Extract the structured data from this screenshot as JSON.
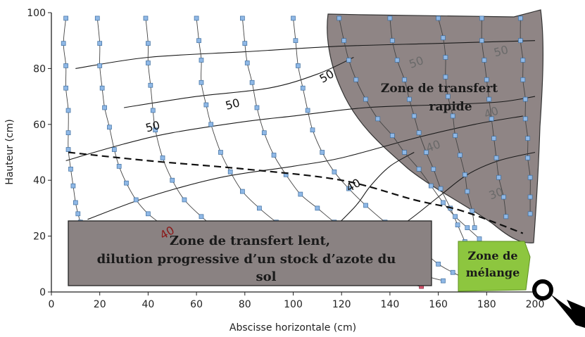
{
  "chart_data": {
    "type": "scatter",
    "xlabel": "Abscisse horizontale (cm)",
    "ylabel": "Hauteur (cm)",
    "xlim": [
      0,
      200
    ],
    "ylim": [
      0,
      100
    ],
    "xticks": [
      "0",
      "20",
      "40",
      "60",
      "80",
      "100",
      "120",
      "140",
      "160",
      "180",
      "200"
    ],
    "yticks": [
      "0",
      "20",
      "40",
      "60",
      "80",
      "100"
    ],
    "flow_paths": [
      [
        [
          6,
          98
        ],
        [
          5,
          89
        ],
        [
          6,
          81
        ],
        [
          6,
          73
        ],
        [
          7,
          65
        ],
        [
          7,
          57
        ],
        [
          7,
          51
        ],
        [
          8,
          44
        ],
        [
          9,
          38
        ],
        [
          10,
          32
        ],
        [
          11,
          28
        ],
        [
          12,
          25
        ],
        [
          13,
          22
        ],
        [
          15,
          19
        ],
        [
          17,
          17
        ],
        [
          20,
          15
        ],
        [
          24,
          13
        ],
        [
          28,
          11
        ],
        [
          34,
          9
        ],
        [
          41,
          7
        ],
        [
          50,
          6
        ],
        [
          60,
          5
        ],
        [
          70,
          4
        ],
        [
          80,
          3
        ],
        [
          89,
          3
        ]
      ],
      [
        [
          19,
          98
        ],
        [
          20,
          89
        ],
        [
          20,
          81
        ],
        [
          21,
          73
        ],
        [
          22,
          66
        ],
        [
          24,
          59
        ],
        [
          26,
          51
        ],
        [
          28,
          45
        ],
        [
          31,
          39
        ],
        [
          35,
          33
        ],
        [
          40,
          28
        ],
        [
          46,
          24
        ],
        [
          53,
          20
        ],
        [
          60,
          17
        ],
        [
          67,
          15
        ],
        [
          75,
          13
        ],
        [
          82,
          11
        ],
        [
          89,
          9
        ],
        [
          96,
          8
        ],
        [
          104,
          6
        ],
        [
          110,
          5
        ],
        [
          121,
          4
        ],
        [
          128,
          3
        ]
      ],
      [
        [
          39,
          98
        ],
        [
          40,
          89
        ],
        [
          40,
          82
        ],
        [
          41,
          74
        ],
        [
          42,
          65
        ],
        [
          43,
          58
        ],
        [
          46,
          48
        ],
        [
          50,
          40
        ],
        [
          55,
          33
        ],
        [
          62,
          27
        ],
        [
          69,
          22
        ],
        [
          76,
          18
        ],
        [
          82,
          15
        ],
        [
          89,
          13
        ],
        [
          97,
          11
        ],
        [
          107,
          9
        ],
        [
          116,
          7
        ],
        [
          125,
          5
        ],
        [
          138,
          4
        ],
        [
          153,
          2
        ]
      ],
      [
        [
          60,
          98
        ],
        [
          61,
          90
        ],
        [
          62,
          83
        ],
        [
          62,
          75
        ],
        [
          64,
          67
        ],
        [
          66,
          60
        ],
        [
          70,
          50
        ],
        [
          74,
          43
        ],
        [
          79,
          36
        ],
        [
          86,
          30
        ],
        [
          93,
          25
        ],
        [
          101,
          20
        ],
        [
          110,
          16
        ],
        [
          121,
          12
        ],
        [
          131,
          9
        ],
        [
          141,
          6
        ],
        [
          154,
          3
        ]
      ],
      [
        [
          79,
          98
        ],
        [
          80,
          89
        ],
        [
          81,
          82
        ],
        [
          83,
          75
        ],
        [
          85,
          66
        ],
        [
          88,
          57
        ],
        [
          92,
          49
        ],
        [
          97,
          42
        ],
        [
          103,
          35
        ],
        [
          110,
          30
        ],
        [
          117,
          25
        ],
        [
          125,
          20
        ],
        [
          134,
          15
        ],
        [
          144,
          10
        ],
        [
          154,
          6
        ],
        [
          162,
          4
        ]
      ],
      [
        [
          100,
          98
        ],
        [
          101,
          90
        ],
        [
          102,
          81
        ],
        [
          104,
          73
        ],
        [
          106,
          65
        ],
        [
          108,
          58
        ],
        [
          112,
          50
        ],
        [
          117,
          43
        ],
        [
          123,
          37
        ],
        [
          130,
          31
        ],
        [
          138,
          25
        ],
        [
          145,
          20
        ],
        [
          153,
          15
        ],
        [
          160,
          10
        ],
        [
          166,
          7
        ],
        [
          173,
          4
        ]
      ],
      [
        [
          119,
          98
        ],
        [
          121,
          90
        ],
        [
          123,
          83
        ],
        [
          126,
          76
        ],
        [
          130,
          69
        ],
        [
          135,
          62
        ],
        [
          141,
          56
        ],
        [
          146,
          50
        ],
        [
          152,
          44
        ],
        [
          157,
          38
        ],
        [
          162,
          32
        ],
        [
          167,
          27
        ],
        [
          172,
          23
        ],
        [
          177,
          19
        ],
        [
          181,
          15
        ],
        [
          185,
          11
        ]
      ],
      [
        [
          140,
          98
        ],
        [
          141,
          90
        ],
        [
          143,
          83
        ],
        [
          146,
          76
        ],
        [
          148,
          69
        ],
        [
          150,
          63
        ],
        [
          152,
          57
        ],
        [
          155,
          50
        ],
        [
          158,
          44
        ],
        [
          161,
          37
        ],
        [
          165,
          30
        ],
        [
          168,
          24
        ],
        [
          171,
          18
        ]
      ],
      [
        [
          160,
          98
        ],
        [
          162,
          91
        ],
        [
          163,
          84
        ],
        [
          163,
          77
        ],
        [
          164,
          70
        ],
        [
          166,
          63
        ],
        [
          167,
          56
        ],
        [
          169,
          49
        ],
        [
          171,
          42
        ],
        [
          172,
          36
        ],
        [
          174,
          29
        ],
        [
          175,
          23
        ]
      ],
      [
        [
          178,
          98
        ],
        [
          178,
          90
        ],
        [
          179,
          83
        ],
        [
          180,
          76
        ],
        [
          181,
          69
        ],
        [
          182,
          62
        ],
        [
          183,
          55
        ],
        [
          184,
          48
        ],
        [
          185,
          41
        ],
        [
          187,
          34
        ],
        [
          188,
          27
        ]
      ],
      [
        [
          194,
          98
        ],
        [
          194,
          90
        ],
        [
          195,
          83
        ],
        [
          195,
          76
        ],
        [
          196,
          69
        ],
        [
          196,
          62
        ],
        [
          197,
          55
        ],
        [
          197,
          48
        ],
        [
          198,
          41
        ],
        [
          198,
          34
        ],
        [
          198,
          28
        ]
      ]
    ],
    "contours": [
      {
        "points": [
          [
            10,
            80
          ],
          [
            40,
            84
          ],
          [
            80,
            86
          ],
          [
            120,
            88
          ],
          [
            160,
            89
          ],
          [
            200,
            90
          ]
        ]
      },
      {
        "points": [
          [
            30,
            66
          ],
          [
            60,
            70
          ],
          [
            90,
            73
          ],
          [
            110,
            78
          ],
          [
            125,
            84
          ]
        ]
      },
      {
        "points": [
          [
            6,
            47
          ],
          [
            30,
            53
          ],
          [
            50,
            57
          ],
          [
            80,
            61
          ],
          [
            100,
            63
          ],
          [
            130,
            66
          ],
          [
            160,
            67
          ],
          [
            185,
            68
          ],
          [
            200,
            70
          ]
        ]
      },
      {
        "points": [
          [
            15,
            26
          ],
          [
            40,
            34
          ],
          [
            70,
            41
          ],
          [
            100,
            45
          ],
          [
            120,
            48
          ],
          [
            150,
            55
          ],
          [
            175,
            60
          ],
          [
            195,
            63
          ]
        ]
      },
      {
        "points": [
          [
            90,
            10
          ],
          [
            112,
            20
          ],
          [
            125,
            30
          ],
          [
            132,
            38
          ],
          [
            140,
            45
          ],
          [
            150,
            50
          ]
        ]
      },
      {
        "points": [
          [
            125,
            14
          ],
          [
            145,
            24
          ],
          [
            160,
            34
          ],
          [
            172,
            42
          ],
          [
            185,
            47
          ],
          [
            200,
            50
          ]
        ]
      }
    ],
    "contour_labels": [
      {
        "text": "50",
        "x": 42,
        "y": 59,
        "rotation": -15,
        "color": "#111111"
      },
      {
        "text": "50",
        "x": 75,
        "y": 67,
        "rotation": -15,
        "color": "#111111"
      },
      {
        "text": "50",
        "x": 114,
        "y": 77,
        "rotation": -30,
        "color": "#111111"
      },
      {
        "text": "40",
        "x": 125,
        "y": 38,
        "rotation": -30,
        "color": "#111111"
      },
      {
        "text": "50",
        "x": 151,
        "y": 82,
        "rotation": -20,
        "color": "#6a6a6a"
      },
      {
        "text": "50",
        "x": 186,
        "y": 86,
        "rotation": -15,
        "color": "#6a6a6a"
      },
      {
        "text": "40",
        "x": 158,
        "y": 52,
        "rotation": -20,
        "color": "#6a6a6a"
      },
      {
        "text": "40",
        "x": 182,
        "y": 64,
        "rotation": -20,
        "color": "#6a6a6a"
      },
      {
        "text": "30",
        "x": 184,
        "y": 35,
        "rotation": -20,
        "color": "#6a6a6a"
      },
      {
        "text": "40",
        "x": 48,
        "y": 21,
        "rotation": -30,
        "color": "#8a1a1a"
      }
    ],
    "threshold_line": [
      [
        7,
        50
      ],
      [
        40,
        47
      ],
      [
        80,
        44
      ],
      [
        120,
        40
      ],
      [
        150,
        33
      ],
      [
        170,
        29
      ],
      [
        195,
        21
      ]
    ],
    "zones": [
      {
        "name": "rapid",
        "lines": [
          "Zone de transfert",
          "rapide"
        ],
        "fill": "#8f8585"
      },
      {
        "name": "slow",
        "lines": [
          "Zone de transfert lent,",
          "dilution progressive d’un stock d’azote du",
          "sol"
        ],
        "fill": "#8a8282"
      },
      {
        "name": "mixing",
        "lines": [
          "Zone de",
          "mélange"
        ],
        "fill": "#8dc63f"
      }
    ],
    "marker_colors": {
      "upper": "#8fb8e6",
      "lower": "#d9556e"
    },
    "grid": false
  }
}
